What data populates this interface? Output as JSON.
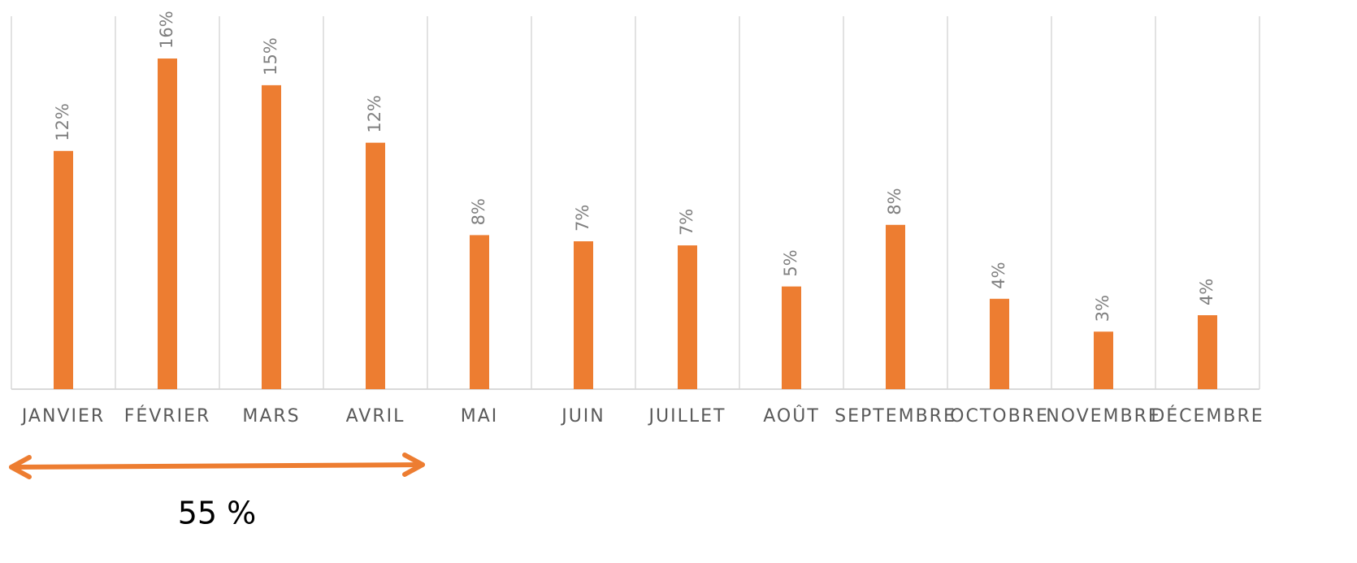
{
  "chart_data": {
    "type": "bar",
    "categories": [
      "JANVIER",
      "FÉVRIER",
      "MARS",
      "AVRIL",
      "MAI",
      "JUIN",
      "JUILLET",
      "AOÛT",
      "SEPTEMBRE",
      "OCTOBRE",
      "NOVEMBRE",
      "DÉCEMBRE"
    ],
    "values": [
      11.6,
      16.1,
      14.8,
      12.0,
      7.5,
      7.2,
      7.0,
      5.0,
      8.0,
      4.4,
      2.8,
      3.6
    ],
    "value_labels": [
      "12%",
      "16%",
      "15%",
      "12%",
      "8%",
      "7%",
      "7%",
      "5%",
      "8%",
      "4%",
      "3%",
      "4%"
    ],
    "color": "#ed7d31",
    "ylim": [
      0,
      18
    ],
    "annotation": "55 %"
  }
}
